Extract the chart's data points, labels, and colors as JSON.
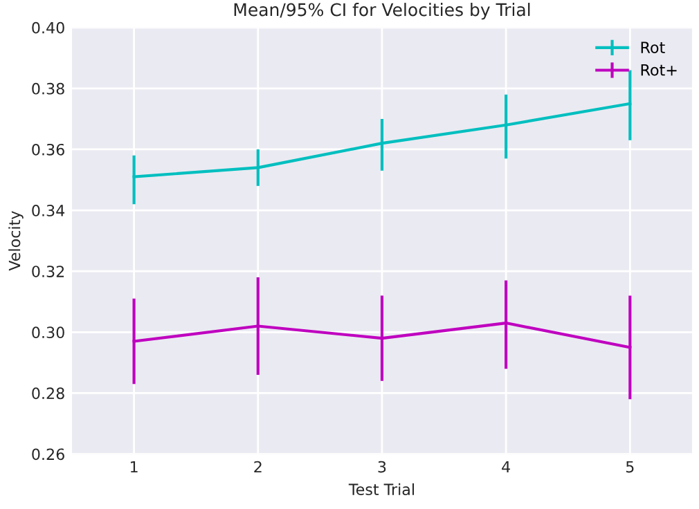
{
  "chart_data": {
    "type": "line",
    "title": "Mean/95% CI for Velocities by Trial",
    "xlabel": "Test Trial",
    "ylabel": "Velocity",
    "x": [
      1,
      2,
      3,
      4,
      5
    ],
    "series": [
      {
        "name": "Rot",
        "color": "#00bfbf",
        "values": [
          0.351,
          0.354,
          0.362,
          0.368,
          0.375
        ],
        "errors": [
          [
            0.342,
            0.358
          ],
          [
            0.348,
            0.36
          ],
          [
            0.353,
            0.37
          ],
          [
            0.357,
            0.378
          ],
          [
            0.363,
            0.386
          ]
        ]
      },
      {
        "name": "Rot+",
        "color": "#bf00bf",
        "values": [
          0.297,
          0.302,
          0.298,
          0.303,
          0.295
        ],
        "errors": [
          [
            0.283,
            0.311
          ],
          [
            0.286,
            0.318
          ],
          [
            0.284,
            0.312
          ],
          [
            0.288,
            0.317
          ],
          [
            0.278,
            0.312
          ]
        ]
      }
    ],
    "xlim": [
      0.5,
      5.5
    ],
    "xticks": [
      1,
      2,
      3,
      4,
      5
    ],
    "ylim": [
      0.26,
      0.4
    ],
    "yticks": [
      0.26,
      0.28,
      {
        "value": 0.3,
        "label": "0.30"
      },
      0.32,
      0.34,
      0.36,
      0.38,
      {
        "value": 0.4,
        "label": "0.40"
      }
    ],
    "grid": true,
    "legend": "top right",
    "marker": "none",
    "line_style": "solid"
  }
}
